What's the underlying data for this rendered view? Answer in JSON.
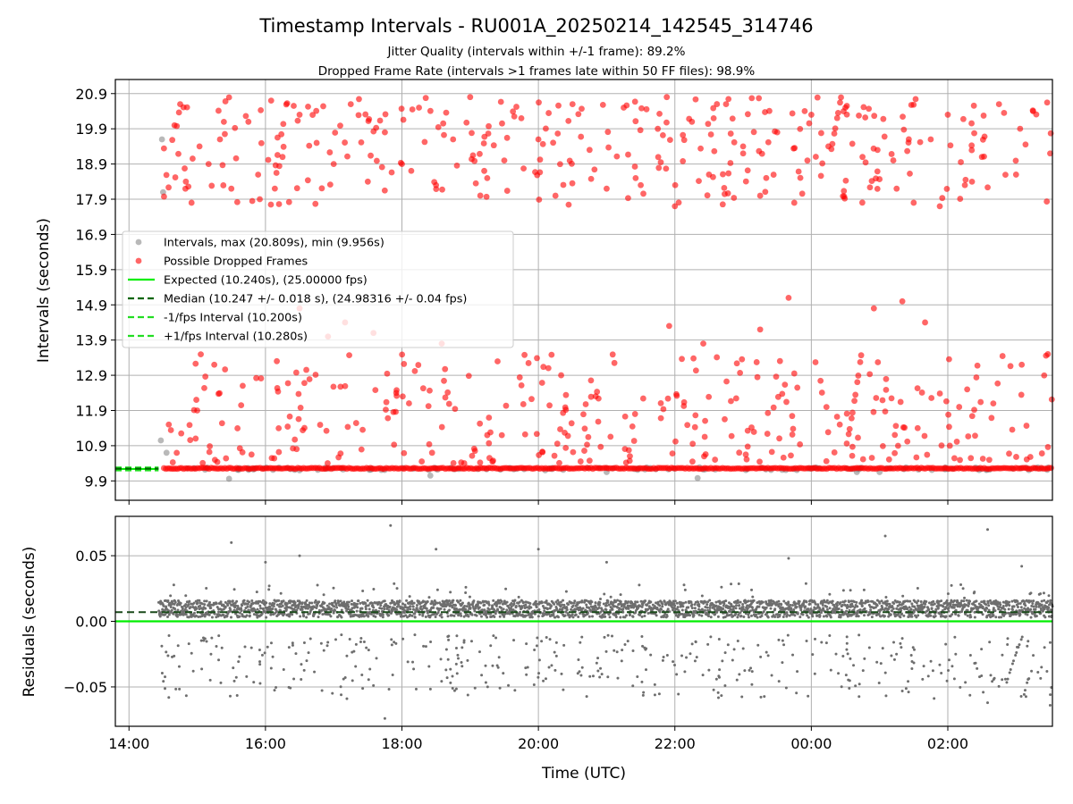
{
  "figure": {
    "title": "Timestamp Intervals - RU001A_20250214_142545_314746",
    "subtitle_1": "Jitter Quality (intervals within +/-1 frame): 89.2%",
    "subtitle_2": "Dropped Frame Rate (intervals >1 frames late within 50 FF files): 98.9%"
  },
  "colors": {
    "dropped": "#ff0000",
    "interval": "#808080",
    "expected": "#00ee00",
    "median": "#006400",
    "band": "#22dd22",
    "residual": "#6e6e6e",
    "grid": "#b0b0b0"
  },
  "chart_data": [
    {
      "type": "scatter",
      "panel": "intervals",
      "xlabel": "",
      "ylabel": "Intervals (seconds)",
      "x_axis": "time UTC",
      "xlim": [
        "13:48",
        "03:32"
      ],
      "ylim": [
        9.35,
        21.3
      ],
      "y_ticks": [
        9.9,
        10.9,
        11.9,
        12.9,
        13.9,
        14.9,
        15.9,
        16.9,
        17.9,
        18.9,
        19.9,
        20.9
      ],
      "y_tick_labels": [
        "9.9",
        "10.9",
        "11.9",
        "12.9",
        "13.9",
        "14.9",
        "15.9",
        "16.9",
        "17.9",
        "18.9",
        "19.9",
        "20.9"
      ],
      "grid": true,
      "legend": {
        "placement": "center-left",
        "entries": [
          {
            "label": "Intervals, max (20.809s), min (9.956s)",
            "kind": "marker",
            "color": "#808080"
          },
          {
            "label": "Possible Dropped Frames",
            "kind": "marker",
            "color": "#ff0000"
          },
          {
            "label": "Expected (10.240s), (25.00000 fps)",
            "kind": "solid",
            "color": "#00ee00"
          },
          {
            "label": "Median (10.247 +/- 0.018 s), (24.98316 +/- 0.04 fps)",
            "kind": "dashed",
            "color": "#006400"
          },
          {
            "label": "-1/fps Interval (10.200s)",
            "kind": "dashed",
            "color": "#22dd22"
          },
          {
            "label": "+1/fps Interval (10.280s)",
            "kind": "dashed",
            "color": "#22dd22"
          }
        ]
      },
      "reference_lines": {
        "expected": 10.24,
        "median": 10.247,
        "minus_1fps": 10.2,
        "plus_1fps": 10.28
      },
      "time_range": [
        "14:26",
        "03:32"
      ],
      "series": [
        {
          "name": "Intervals, max (20.809s), min (9.956s)",
          "baseline": 10.247,
          "max": 20.809,
          "min": 9.956,
          "points": [
            {
              "t": "14:29",
              "y": 19.6
            },
            {
              "t": "14:30",
              "y": 18.1
            },
            {
              "t": "14:28",
              "y": 11.05
            },
            {
              "t": "14:33",
              "y": 10.7
            },
            {
              "t": "15:28",
              "y": 9.96
            },
            {
              "t": "16:30",
              "y": 10.2
            },
            {
              "t": "18:25",
              "y": 10.05
            },
            {
              "t": "20:06",
              "y": 10.2
            },
            {
              "t": "21:00",
              "y": 10.15
            },
            {
              "t": "22:20",
              "y": 9.98
            },
            {
              "t": "00:40",
              "y": 10.15
            },
            {
              "t": "01:00",
              "y": 10.15
            }
          ]
        },
        {
          "name": "Possible Dropped Frames",
          "baseline": 10.256,
          "points": [
            {
              "t": "14:40",
              "y": 20.0
            },
            {
              "t": "14:45",
              "y": 20.6
            },
            {
              "t": "14:50",
              "y": 18.4
            },
            {
              "t": "14:55",
              "y": 17.8
            },
            {
              "t": "15:02",
              "y": 19.4
            },
            {
              "t": "15:10",
              "y": 18.9
            },
            {
              "t": "15:20",
              "y": 19.6
            },
            {
              "t": "15:30",
              "y": 18.2
            },
            {
              "t": "15:45",
              "y": 20.1
            },
            {
              "t": "15:55",
              "y": 17.9
            },
            {
              "t": "16:05",
              "y": 20.7
            },
            {
              "t": "16:15",
              "y": 19.1
            },
            {
              "t": "16:30",
              "y": 20.3
            },
            {
              "t": "16:45",
              "y": 19.5
            },
            {
              "t": "17:00",
              "y": 18.9
            },
            {
              "t": "17:15",
              "y": 20.6
            },
            {
              "t": "17:30",
              "y": 18.4
            },
            {
              "t": "17:45",
              "y": 19.8
            },
            {
              "t": "18:00",
              "y": 18.9
            },
            {
              "t": "18:15",
              "y": 20.5
            },
            {
              "t": "18:30",
              "y": 18.3
            },
            {
              "t": "18:45",
              "y": 19.6
            },
            {
              "t": "19:00",
              "y": 20.8
            },
            {
              "t": "19:15",
              "y": 18.5
            },
            {
              "t": "19:30",
              "y": 19.0
            },
            {
              "t": "19:45",
              "y": 20.2
            },
            {
              "t": "20:00",
              "y": 19.6
            },
            {
              "t": "20:15",
              "y": 18.0
            },
            {
              "t": "20:30",
              "y": 20.6
            },
            {
              "t": "20:45",
              "y": 19.3
            },
            {
              "t": "21:00",
              "y": 18.2
            },
            {
              "t": "21:15",
              "y": 20.5
            },
            {
              "t": "21:30",
              "y": 18.3
            },
            {
              "t": "21:45",
              "y": 19.9
            },
            {
              "t": "22:00",
              "y": 17.7
            },
            {
              "t": "22:15",
              "y": 20.1
            },
            {
              "t": "22:30",
              "y": 18.6
            },
            {
              "t": "22:45",
              "y": 20.6
            },
            {
              "t": "23:00",
              "y": 19.4
            },
            {
              "t": "23:15",
              "y": 18.0
            },
            {
              "t": "23:30",
              "y": 19.8
            },
            {
              "t": "23:45",
              "y": 17.8
            },
            {
              "t": "00:00",
              "y": 20.3
            },
            {
              "t": "00:15",
              "y": 19.4
            },
            {
              "t": "00:30",
              "y": 20.5
            },
            {
              "t": "00:45",
              "y": 19.1
            },
            {
              "t": "01:15",
              "y": 18.2
            },
            {
              "t": "01:30",
              "y": 17.8
            },
            {
              "t": "01:45",
              "y": 19.6
            },
            {
              "t": "02:00",
              "y": 20.3
            },
            {
              "t": "02:15",
              "y": 18.3
            },
            {
              "t": "02:30",
              "y": 19.1
            },
            {
              "t": "02:45",
              "y": 20.6
            },
            {
              "t": "03:00",
              "y": 18.6
            },
            {
              "t": "03:15",
              "y": 20.4
            },
            {
              "t": "03:30",
              "y": 19.2
            },
            {
              "t": "14:35",
              "y": 11.5
            },
            {
              "t": "15:00",
              "y": 11.9
            },
            {
              "t": "15:15",
              "y": 13.2
            },
            {
              "t": "15:40",
              "y": 12.6
            },
            {
              "t": "16:10",
              "y": 13.3
            },
            {
              "t": "16:30",
              "y": 14.8
            },
            {
              "t": "16:55",
              "y": 14.0
            },
            {
              "t": "17:10",
              "y": 14.4
            },
            {
              "t": "17:35",
              "y": 14.1
            },
            {
              "t": "17:55",
              "y": 12.4
            },
            {
              "t": "18:35",
              "y": 13.8
            },
            {
              "t": "19:15",
              "y": 11.2
            },
            {
              "t": "20:20",
              "y": 12.9
            },
            {
              "t": "21:25",
              "y": 11.8
            },
            {
              "t": "21:55",
              "y": 14.3
            },
            {
              "t": "22:25",
              "y": 13.8
            },
            {
              "t": "23:15",
              "y": 14.2
            },
            {
              "t": "23:40",
              "y": 15.1
            },
            {
              "t": "00:25",
              "y": 11.5
            },
            {
              "t": "00:55",
              "y": 14.8
            },
            {
              "t": "01:20",
              "y": 15.0
            },
            {
              "t": "01:40",
              "y": 14.4
            },
            {
              "t": "02:10",
              "y": 12.0
            },
            {
              "t": "02:40",
              "y": 12.1
            },
            {
              "t": "03:05",
              "y": 13.2
            },
            {
              "t": "03:28",
              "y": 13.5
            }
          ]
        }
      ]
    },
    {
      "type": "scatter",
      "panel": "residuals",
      "xlabel": "Time (UTC)",
      "ylabel": "Residuals (seconds)",
      "xlim": [
        "13:48",
        "03:32"
      ],
      "ylim": [
        -0.08,
        0.08
      ],
      "x_ticks": [
        "14:00",
        "16:00",
        "18:00",
        "20:00",
        "22:00",
        "00:00",
        "02:00"
      ],
      "y_ticks": [
        0.05,
        0.0,
        -0.05
      ],
      "y_tick_labels": [
        "0.05",
        "0.00",
        "−0.05"
      ],
      "grid": true,
      "reference_lines": {
        "zero": 0.0,
        "median_offset": 0.007
      },
      "series": [
        {
          "name": "",
          "core_band": [
            0.003,
            0.016
          ],
          "negative_band": [
            -0.06,
            -0.01
          ],
          "outliers": [
            {
              "t": "15:30",
              "y": 0.06
            },
            {
              "t": "16:00",
              "y": 0.045
            },
            {
              "t": "16:30",
              "y": 0.05
            },
            {
              "t": "17:50",
              "y": 0.073
            },
            {
              "t": "18:30",
              "y": 0.055
            },
            {
              "t": "20:00",
              "y": 0.055
            },
            {
              "t": "21:00",
              "y": 0.045
            },
            {
              "t": "23:40",
              "y": 0.048
            },
            {
              "t": "01:05",
              "y": 0.065
            },
            {
              "t": "02:35",
              "y": 0.07
            },
            {
              "t": "03:05",
              "y": 0.042
            },
            {
              "t": "17:45",
              "y": -0.074
            },
            {
              "t": "14:35",
              "y": -0.058
            },
            {
              "t": "02:35",
              "y": -0.062
            },
            {
              "t": "03:30",
              "y": -0.064
            }
          ]
        }
      ]
    }
  ]
}
